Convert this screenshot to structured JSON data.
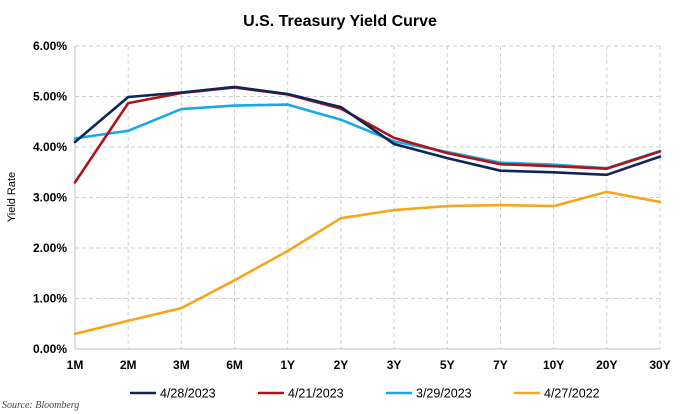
{
  "chart_data": {
    "type": "line",
    "title": "U.S. Treasury Yield Curve",
    "xlabel": "",
    "ylabel": "Yield Rate",
    "categories": [
      "1M",
      "2M",
      "3M",
      "6M",
      "1Y",
      "2Y",
      "3Y",
      "5Y",
      "7Y",
      "10Y",
      "20Y",
      "30Y"
    ],
    "y_ticks": [
      "0.00%",
      "1.00%",
      "2.00%",
      "3.00%",
      "4.00%",
      "5.00%",
      "6.00%"
    ],
    "ylim": [
      0,
      6
    ],
    "y_tick_values": [
      0,
      1,
      2,
      3,
      4,
      5,
      6
    ],
    "grid": true,
    "legend_position": "bottom",
    "source": "Source: Bloomberg",
    "series": [
      {
        "name": "4/28/2023",
        "color": "#0d2557",
        "values": [
          4.1,
          4.99,
          5.08,
          5.19,
          5.05,
          4.79,
          4.06,
          3.78,
          3.53,
          3.5,
          3.45,
          3.81
        ]
      },
      {
        "name": "4/21/2023",
        "color": "#b01217",
        "values": [
          3.3,
          4.87,
          5.07,
          5.18,
          5.04,
          4.76,
          4.18,
          3.88,
          3.66,
          3.62,
          3.57,
          3.91
        ]
      },
      {
        "name": "3/29/2023",
        "color": "#1ba9e6",
        "values": [
          4.17,
          4.32,
          4.75,
          4.82,
          4.84,
          4.54,
          4.11,
          3.9,
          3.69,
          3.65,
          3.58,
          3.92
        ]
      },
      {
        "name": "4/27/2022",
        "color": "#f7a51c",
        "values": [
          0.3,
          0.56,
          0.81,
          1.36,
          1.94,
          2.59,
          2.75,
          2.83,
          2.85,
          2.83,
          3.11,
          2.91
        ]
      }
    ]
  }
}
